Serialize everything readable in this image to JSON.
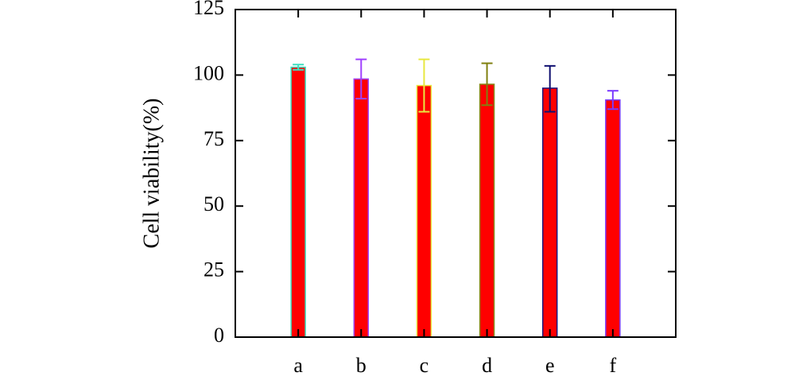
{
  "chart_data": {
    "type": "bar",
    "title": "",
    "xlabel": "",
    "ylabel": "Cell viability(%)",
    "ylim": [
      0,
      125
    ],
    "yticks": [
      0,
      25,
      50,
      75,
      100,
      125
    ],
    "categories": [
      "a",
      "b",
      "c",
      "d",
      "e",
      "f"
    ],
    "values": [
      103.0,
      98.5,
      96.0,
      96.5,
      95.0,
      90.5
    ],
    "error_high": [
      104.0,
      106.0,
      106.0,
      104.5,
      103.5,
      94.0
    ],
    "error_low": [
      102.0,
      91.0,
      86.0,
      88.5,
      86.0,
      87.0
    ],
    "bar_fill": "#ff0000",
    "bar_edge_colors": [
      "#40e0c0",
      "#a040ff",
      "#e8e840",
      "#8a8a1a",
      "#1a1a80",
      "#7a3aff"
    ],
    "error_bar_colors": [
      "#40e0c0",
      "#a040ff",
      "#e8e840",
      "#808010",
      "#101070",
      "#7a3aff"
    ],
    "grid": false,
    "legend": "none"
  }
}
